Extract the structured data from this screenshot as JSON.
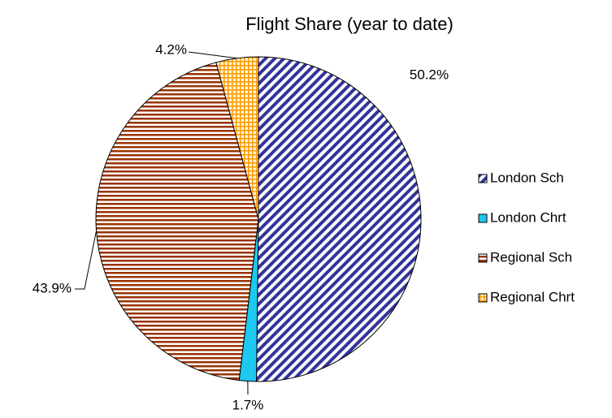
{
  "chart_data": {
    "type": "pie",
    "title": "Flight Share (year to date)",
    "categories": [
      "London Sch",
      "London Chrt",
      "Regional Sch",
      "Regional Chrt"
    ],
    "values": [
      50.2,
      1.7,
      43.9,
      4.2
    ],
    "value_labels": [
      "50.2%",
      "1.7%",
      "43.9%",
      "4.2%"
    ],
    "colors": [
      "#333399",
      "#1ec8f0",
      "#993300",
      "#ff9900"
    ],
    "patterns": [
      "diagonal",
      "solid",
      "horizontal",
      "grid"
    ],
    "legend": "right"
  }
}
